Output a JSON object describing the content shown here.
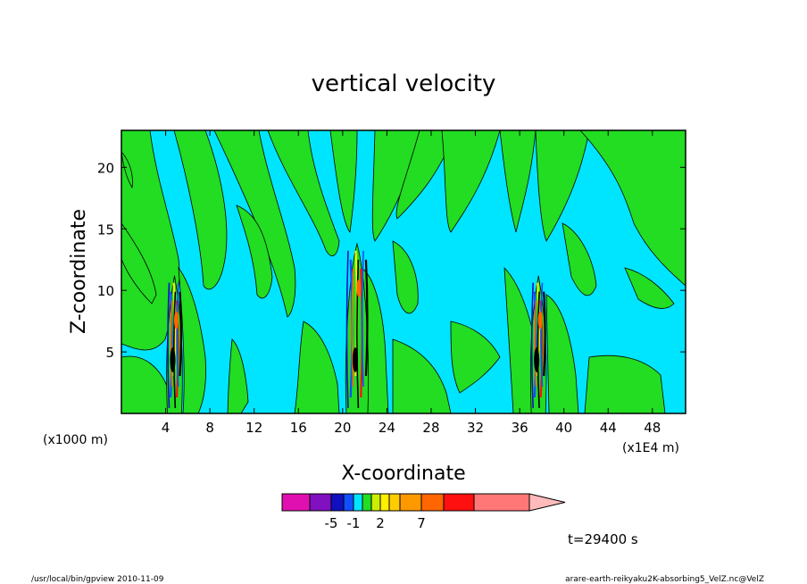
{
  "chart_data": {
    "type": "heatmap",
    "title": "vertical velocity",
    "xlabel": "X-coordinate",
    "ylabel": "Z-coordinate",
    "x_unit_left": "(x1000 m)",
    "x_unit_right": "(x1E4 m)",
    "xlim": [
      0,
      51
    ],
    "ylim": [
      0,
      23
    ],
    "x_ticks": [
      "4",
      "8",
      "12",
      "16",
      "20",
      "24",
      "28",
      "32",
      "36",
      "40",
      "44",
      "48"
    ],
    "x_tick_values": [
      4,
      8,
      12,
      16,
      20,
      24,
      28,
      32,
      36,
      40,
      44,
      48
    ],
    "y_ticks": [
      "5",
      "10",
      "15",
      "20"
    ],
    "y_tick_values": [
      5,
      10,
      15,
      20
    ],
    "background_level_color": "#00e5ff",
    "positive_level_color": "#22dd22",
    "convective_columns_x": [
      4.8,
      21.3,
      37.7
    ],
    "colorbar": {
      "colors": [
        "#e010b0",
        "#8010c0",
        "#1010c0",
        "#1050ff",
        "#00e5ff",
        "#22dd22",
        "#ccee00",
        "#ffee00",
        "#ffcc00",
        "#ff9900",
        "#ff6600",
        "#ff1010",
        "#ff7777",
        "#ffbbbb"
      ],
      "labels": [
        "-5",
        "-1",
        "2",
        "7"
      ],
      "label_positions": [
        1,
        3,
        6,
        9
      ]
    },
    "time_label": "t=29400 s"
  },
  "footer": {
    "left": "/usr/local/bin/gpview  2010-11-09",
    "right": "arare-earth-reikyaku2K-absorbing5_VelZ.nc@VelZ"
  }
}
